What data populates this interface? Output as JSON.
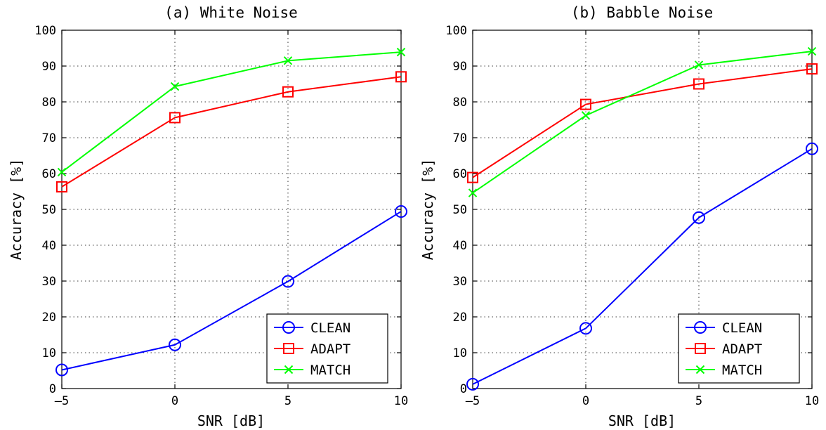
{
  "chart_data": [
    {
      "type": "line",
      "title": "(a) White Noise",
      "xlabel": "SNR [dB]",
      "ylabel": "Accuracy [%]",
      "x": [
        -5,
        0,
        5,
        10
      ],
      "xlim": [
        -5,
        10
      ],
      "ylim": [
        0,
        100
      ],
      "xticks": [
        "-5",
        "0",
        "5",
        "10"
      ],
      "yticks": [
        "0",
        "10",
        "20",
        "30",
        "40",
        "50",
        "60",
        "70",
        "80",
        "90",
        "100"
      ],
      "grid": true,
      "legend_position": "bottom-right",
      "series": [
        {
          "name": "CLEAN",
          "color": "#0000ff",
          "marker": "circle",
          "values": [
            5.2,
            12.2,
            29.9,
            49.4
          ]
        },
        {
          "name": "ADAPT",
          "color": "#ff0000",
          "marker": "square",
          "values": [
            56.3,
            75.6,
            82.8,
            87.0
          ]
        },
        {
          "name": "MATCH",
          "color": "#00ff00",
          "marker": "x",
          "values": [
            60.4,
            84.3,
            91.5,
            93.9
          ]
        }
      ]
    },
    {
      "type": "line",
      "title": "(b) Babble Noise",
      "xlabel": "SNR [dB]",
      "ylabel": "Accuracy [%]",
      "x": [
        -5,
        0,
        5,
        10
      ],
      "xlim": [
        -5,
        10
      ],
      "ylim": [
        0,
        100
      ],
      "xticks": [
        "-5",
        "0",
        "5",
        "10"
      ],
      "yticks": [
        "0",
        "10",
        "20",
        "30",
        "40",
        "50",
        "60",
        "70",
        "80",
        "90",
        "100"
      ],
      "grid": true,
      "legend_position": "bottom-right",
      "series": [
        {
          "name": "CLEAN",
          "color": "#0000ff",
          "marker": "circle",
          "values": [
            1.2,
            16.8,
            47.7,
            66.9
          ]
        },
        {
          "name": "ADAPT",
          "color": "#ff0000",
          "marker": "square",
          "values": [
            58.9,
            79.3,
            85.0,
            89.2
          ]
        },
        {
          "name": "MATCH",
          "color": "#00ff00",
          "marker": "x",
          "values": [
            54.6,
            76.2,
            90.3,
            94.1
          ]
        }
      ]
    }
  ]
}
